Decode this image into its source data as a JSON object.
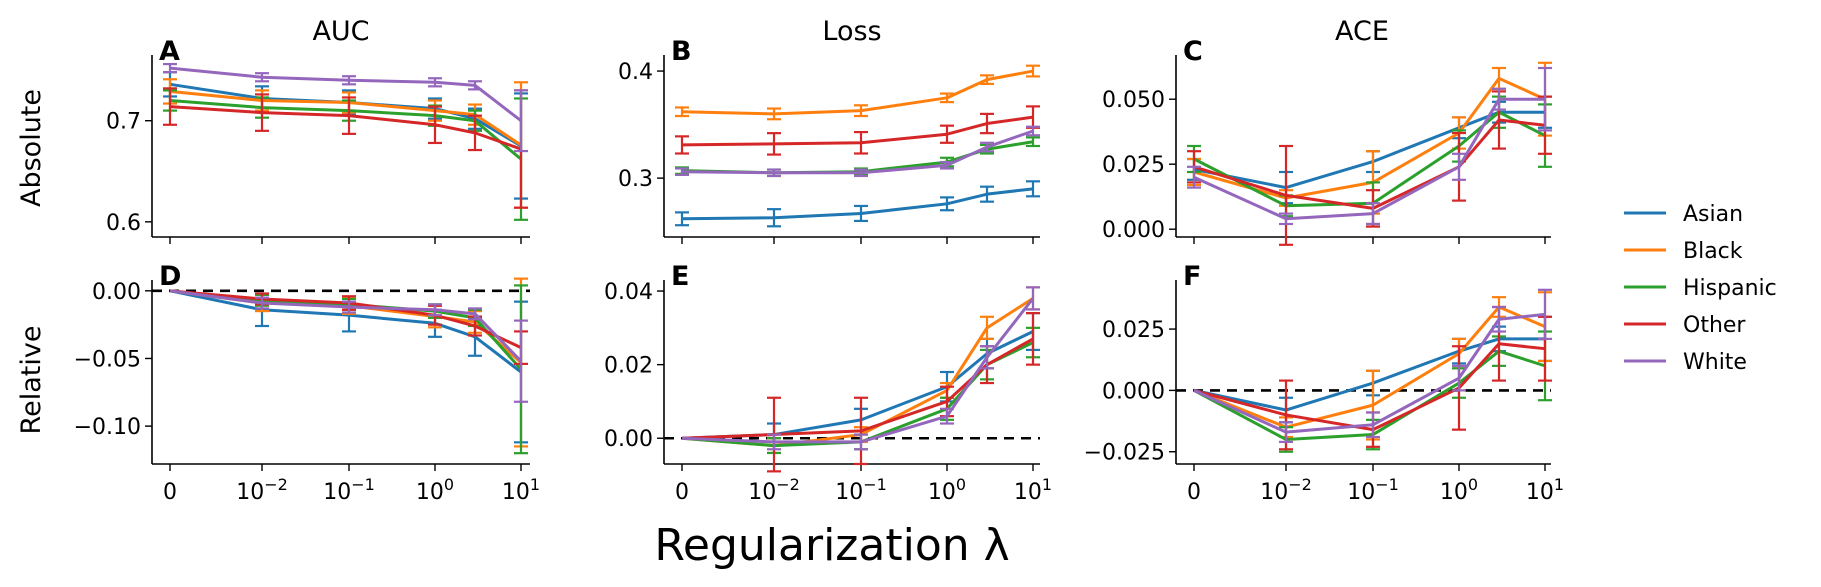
{
  "figure": {
    "xlabel": "Regularization λ",
    "col_titles": [
      "AUC",
      "Loss",
      "ACE"
    ],
    "row_labels": [
      "Absolute",
      "Relative"
    ],
    "x_tick_labels": [
      "0",
      "10^-2",
      "10^-1",
      "10^0",
      "10^1"
    ],
    "legend": [
      {
        "name": "Asian",
        "color": "#1f77b4"
      },
      {
        "name": "Black",
        "color": "#ff7f0e"
      },
      {
        "name": "Hispanic",
        "color": "#2ca02c"
      },
      {
        "name": "Other",
        "color": "#d62728"
      },
      {
        "name": "White",
        "color": "#9467bd"
      }
    ]
  },
  "chart_data": [
    {
      "panel": "A",
      "type": "line",
      "title": "AUC",
      "ylabel": "Absolute",
      "x": [
        "0",
        "0.01",
        "0.056",
        "0.32",
        "1.8",
        "10"
      ],
      "ylim": [
        0.585,
        0.765
      ],
      "yticks": [
        "0.6",
        "0.7"
      ],
      "series": [
        {
          "name": "Asian",
          "values": [
            0.736,
            0.722,
            0.718,
            0.712,
            0.702,
            0.675
          ],
          "err": [
            0.012,
            0.012,
            0.012,
            0.01,
            0.01,
            0.052
          ]
        },
        {
          "name": "Black",
          "values": [
            0.729,
            0.72,
            0.718,
            0.71,
            0.706,
            0.676
          ],
          "err": [
            0.012,
            0.01,
            0.01,
            0.01,
            0.01,
            0.062
          ]
        },
        {
          "name": "Hispanic",
          "values": [
            0.72,
            0.713,
            0.71,
            0.705,
            0.7,
            0.662
          ],
          "err": [
            0.01,
            0.01,
            0.01,
            0.01,
            0.01,
            0.06
          ]
        },
        {
          "name": "Other",
          "values": [
            0.714,
            0.708,
            0.705,
            0.696,
            0.688,
            0.672
          ],
          "err": [
            0.018,
            0.018,
            0.018,
            0.018,
            0.017,
            0.058
          ]
        },
        {
          "name": "White",
          "values": [
            0.752,
            0.743,
            0.74,
            0.738,
            0.735,
            0.7
          ],
          "err": [
            0.004,
            0.004,
            0.004,
            0.004,
            0.004,
            0.03
          ]
        }
      ]
    },
    {
      "panel": "B",
      "type": "line",
      "title": "Loss",
      "x": [
        "0",
        "0.01",
        "0.056",
        "0.32",
        "1.8",
        "10"
      ],
      "ylim": [
        0.245,
        0.415
      ],
      "yticks": [
        "0.3",
        "0.4"
      ],
      "series": [
        {
          "name": "Asian",
          "values": [
            0.262,
            0.263,
            0.267,
            0.276,
            0.285,
            0.29
          ],
          "err": [
            0.006,
            0.008,
            0.007,
            0.006,
            0.007,
            0.007
          ]
        },
        {
          "name": "Black",
          "values": [
            0.362,
            0.36,
            0.363,
            0.375,
            0.392,
            0.4
          ],
          "err": [
            0.004,
            0.005,
            0.005,
            0.004,
            0.004,
            0.005
          ]
        },
        {
          "name": "Hispanic",
          "values": [
            0.307,
            0.305,
            0.306,
            0.315,
            0.327,
            0.334
          ],
          "err": [
            0.003,
            0.003,
            0.003,
            0.004,
            0.004,
            0.004
          ]
        },
        {
          "name": "Other",
          "values": [
            0.331,
            0.332,
            0.333,
            0.341,
            0.351,
            0.357
          ],
          "err": [
            0.008,
            0.01,
            0.01,
            0.008,
            0.009,
            0.01
          ]
        },
        {
          "name": "White",
          "values": [
            0.306,
            0.305,
            0.305,
            0.312,
            0.329,
            0.344
          ],
          "err": [
            0.003,
            0.003,
            0.003,
            0.003,
            0.004,
            0.004
          ]
        }
      ]
    },
    {
      "panel": "C",
      "type": "line",
      "title": "ACE",
      "x": [
        "0",
        "0.01",
        "0.056",
        "0.32",
        "1.8",
        "10"
      ],
      "ylim": [
        -0.003,
        0.067
      ],
      "yticks": [
        "0.000",
        "0.025",
        "0.050"
      ],
      "series": [
        {
          "name": "Asian",
          "values": [
            0.023,
            0.016,
            0.026,
            0.039,
            0.045,
            0.045
          ],
          "err": [
            0.004,
            0.006,
            0.004,
            0.004,
            0.004,
            0.006
          ]
        },
        {
          "name": "Black",
          "values": [
            0.022,
            0.012,
            0.018,
            0.037,
            0.058,
            0.05
          ],
          "err": [
            0.005,
            0.003,
            0.012,
            0.006,
            0.004,
            0.014
          ]
        },
        {
          "name": "Hispanic",
          "values": [
            0.027,
            0.009,
            0.01,
            0.032,
            0.045,
            0.036
          ],
          "err": [
            0.005,
            0.004,
            0.008,
            0.006,
            0.006,
            0.012
          ]
        },
        {
          "name": "Other",
          "values": [
            0.024,
            0.013,
            0.008,
            0.024,
            0.042,
            0.04
          ],
          "err": [
            0.006,
            0.019,
            0.007,
            0.013,
            0.011,
            0.011
          ]
        },
        {
          "name": "White",
          "values": [
            0.02,
            0.004,
            0.006,
            0.024,
            0.05,
            0.05
          ],
          "err": [
            0.004,
            0.002,
            0.004,
            0.005,
            0.004,
            0.012
          ]
        }
      ]
    },
    {
      "panel": "D",
      "type": "line",
      "ylabel": "Relative",
      "x": [
        "0",
        "0.01",
        "0.056",
        "0.32",
        "1.8",
        "10"
      ],
      "ylim": [
        -0.128,
        0.008
      ],
      "yticks": [
        "−0.10",
        "−0.05",
        "0.00"
      ],
      "series": [
        {
          "name": "Asian",
          "values": [
            0.0,
            -0.014,
            -0.018,
            -0.024,
            -0.034,
            -0.06
          ],
          "err": [
            0.0,
            0.012,
            0.012,
            0.01,
            0.014,
            0.052
          ]
        },
        {
          "name": "Black",
          "values": [
            0.0,
            -0.009,
            -0.011,
            -0.019,
            -0.023,
            -0.053
          ],
          "err": [
            0.0,
            0.006,
            0.006,
            0.008,
            0.008,
            0.062
          ]
        },
        {
          "name": "Hispanic",
          "values": [
            0.0,
            -0.007,
            -0.01,
            -0.015,
            -0.02,
            -0.058
          ],
          "err": [
            0.0,
            0.004,
            0.004,
            0.005,
            0.006,
            0.062
          ]
        },
        {
          "name": "Other",
          "values": [
            0.0,
            -0.006,
            -0.009,
            -0.018,
            -0.026,
            -0.042
          ],
          "err": [
            0.0,
            0.004,
            0.005,
            0.007,
            0.007,
            0.012
          ]
        },
        {
          "name": "White",
          "values": [
            0.0,
            -0.009,
            -0.012,
            -0.014,
            -0.017,
            -0.052
          ],
          "err": [
            0.0,
            0.004,
            0.004,
            0.004,
            0.004,
            0.03
          ]
        }
      ]
    },
    {
      "panel": "E",
      "type": "line",
      "x": [
        "0",
        "0.01",
        "0.056",
        "0.32",
        "1.8",
        "10"
      ],
      "ylim": [
        -0.007,
        0.043
      ],
      "yticks": [
        "0.00",
        "0.02",
        "0.04"
      ],
      "series": [
        {
          "name": "Asian",
          "values": [
            0.0,
            0.001,
            0.005,
            0.014,
            0.023,
            0.029
          ],
          "err": [
            0.0,
            0.003,
            0.003,
            0.004,
            0.004,
            0.005
          ]
        },
        {
          "name": "Black",
          "values": [
            0.0,
            -0.002,
            0.001,
            0.013,
            0.03,
            0.038
          ],
          "err": [
            0.0,
            0.002,
            0.002,
            0.002,
            0.003,
            0.003
          ]
        },
        {
          "name": "Hispanic",
          "values": [
            0.0,
            -0.002,
            -0.001,
            0.008,
            0.02,
            0.026
          ],
          "err": [
            0.0,
            0.002,
            0.002,
            0.003,
            0.004,
            0.004
          ]
        },
        {
          "name": "Other",
          "values": [
            0.0,
            0.001,
            0.002,
            0.01,
            0.02,
            0.027
          ],
          "err": [
            0.0,
            0.01,
            0.009,
            0.004,
            0.005,
            0.007
          ]
        },
        {
          "name": "White",
          "values": [
            0.0,
            -0.001,
            -0.001,
            0.006,
            0.022,
            0.038
          ],
          "err": [
            0.0,
            0.002,
            0.002,
            0.002,
            0.003,
            0.003
          ]
        }
      ]
    },
    {
      "panel": "F",
      "type": "line",
      "x": [
        "0",
        "0.01",
        "0.056",
        "0.32",
        "1.8",
        "10"
      ],
      "ylim": [
        -0.03,
        0.045
      ],
      "yticks": [
        "−0.025",
        "0.000",
        "0.025"
      ],
      "series": [
        {
          "name": "Asian",
          "values": [
            0.0,
            -0.008,
            0.003,
            0.016,
            0.021,
            0.021
          ],
          "err": [
            0.0,
            0.005,
            0.005,
            0.005,
            0.005,
            0.009
          ]
        },
        {
          "name": "Black",
          "values": [
            0.0,
            -0.015,
            -0.006,
            0.015,
            0.034,
            0.026
          ],
          "err": [
            0.0,
            0.004,
            0.014,
            0.006,
            0.004,
            0.014
          ]
        },
        {
          "name": "Hispanic",
          "values": [
            0.0,
            -0.02,
            -0.018,
            0.003,
            0.016,
            0.01
          ],
          "err": [
            0.0,
            0.005,
            0.006,
            0.006,
            0.006,
            0.014
          ]
        },
        {
          "name": "Other",
          "values": [
            0.0,
            -0.01,
            -0.016,
            0.001,
            0.019,
            0.017
          ],
          "err": [
            0.0,
            0.014,
            0.007,
            0.017,
            0.015,
            0.013
          ]
        },
        {
          "name": "White",
          "values": [
            0.0,
            -0.017,
            -0.014,
            0.005,
            0.029,
            0.031
          ],
          "err": [
            0.0,
            0.004,
            0.005,
            0.005,
            0.005,
            0.01
          ]
        }
      ]
    }
  ]
}
